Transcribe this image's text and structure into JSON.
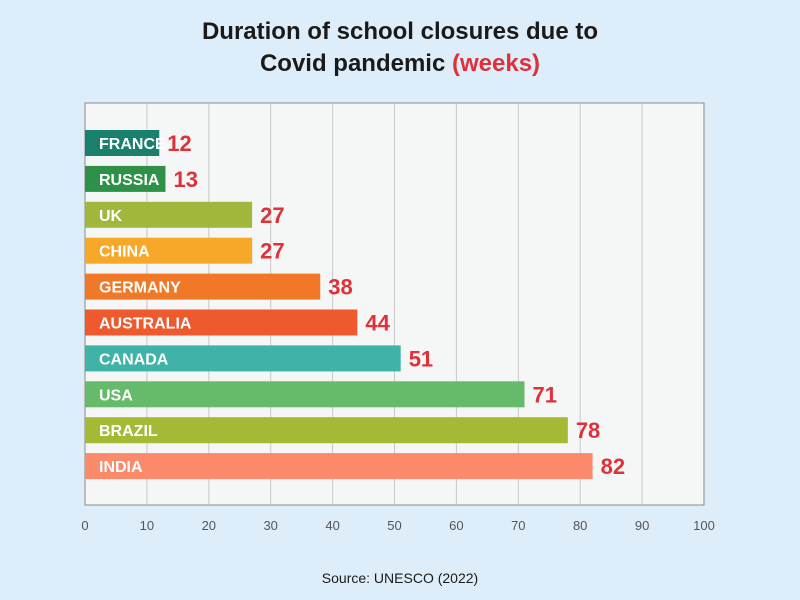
{
  "chart_data": {
    "type": "bar",
    "orientation": "horizontal",
    "title_line1": "Duration of school closures due to",
    "title_line2": "Covid pandemic",
    "title_unit": "(weeks)",
    "source": "Source: UNESCO (2022)",
    "xlim": [
      0,
      100
    ],
    "xticks": [
      0,
      10,
      20,
      30,
      40,
      50,
      60,
      70,
      80,
      90,
      100
    ],
    "grid": true,
    "categories": [
      "FRANCE",
      "RUSSIA",
      "UK",
      "CHINA",
      "GERMANY",
      "AUSTRALIA",
      "CANADA",
      "USA",
      "BRAZIL",
      "INDIA"
    ],
    "values": [
      12,
      13,
      27,
      27,
      38,
      44,
      51,
      71,
      78,
      82
    ],
    "colors": [
      "#1a7f6d",
      "#2f9147",
      "#9fb73a",
      "#f7a829",
      "#f07826",
      "#ee5a2e",
      "#3fb3a8",
      "#66bb6a",
      "#a5b934",
      "#fb8a6b"
    ],
    "value_label_color": "#e0303a"
  }
}
